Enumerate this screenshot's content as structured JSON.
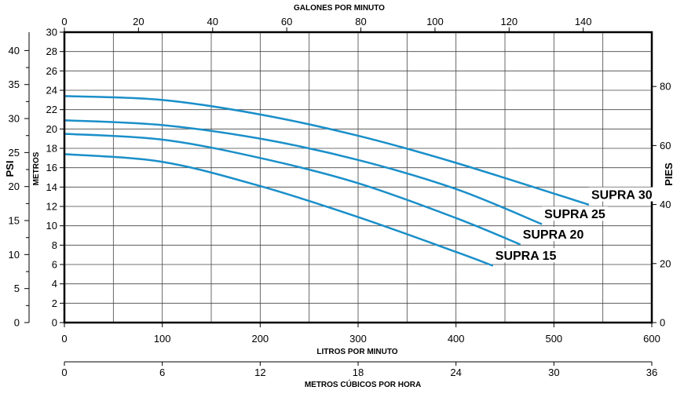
{
  "chart_data": {
    "type": "line",
    "title": "",
    "grid": true,
    "line_color": "#1a8fc9",
    "x_primary": {
      "label": "LITROS POR MINUTO",
      "range": [
        0,
        600
      ],
      "ticks": [
        0,
        100,
        200,
        300,
        400,
        500,
        600
      ]
    },
    "x_top": {
      "label": "GALONES POR MINUTO",
      "range": [
        0,
        158.5
      ],
      "ticks": [
        0,
        20,
        40,
        60,
        80,
        100,
        120,
        140
      ]
    },
    "x_bottom2": {
      "label": "METROS CÚBICOS POR HORA",
      "range": [
        0,
        36
      ],
      "ticks": [
        0,
        6,
        12,
        18,
        24,
        30,
        36
      ]
    },
    "y_primary": {
      "label": "METROS",
      "range": [
        0,
        30
      ],
      "ticks": [
        0,
        2,
        4,
        6,
        8,
        10,
        12,
        14,
        16,
        18,
        20,
        22,
        24,
        26,
        28,
        30
      ]
    },
    "y_left2": {
      "label": "PSI",
      "range": [
        0,
        42.7
      ],
      "ticks": [
        0,
        5,
        10,
        15,
        20,
        25,
        30,
        35,
        40
      ]
    },
    "y_right": {
      "label": "PIES",
      "range": [
        0,
        98.4
      ],
      "ticks": [
        0,
        20,
        40,
        60,
        80
      ]
    },
    "series": [
      {
        "name": "SUPRA 30",
        "points": [
          [
            0,
            23.4
          ],
          [
            100,
            23.0
          ],
          [
            200,
            21.5
          ],
          [
            300,
            19.3
          ],
          [
            400,
            16.5
          ],
          [
            535,
            12.2
          ]
        ]
      },
      {
        "name": "SUPRA 25",
        "points": [
          [
            0,
            20.9
          ],
          [
            100,
            20.4
          ],
          [
            200,
            19.0
          ],
          [
            300,
            16.8
          ],
          [
            400,
            13.8
          ],
          [
            487,
            10.2
          ]
        ]
      },
      {
        "name": "SUPRA 20",
        "points": [
          [
            0,
            19.5
          ],
          [
            100,
            18.9
          ],
          [
            200,
            17.0
          ],
          [
            300,
            14.4
          ],
          [
            400,
            10.8
          ],
          [
            465,
            8.1
          ]
        ]
      },
      {
        "name": "SUPRA 15",
        "points": [
          [
            0,
            17.4
          ],
          [
            100,
            16.6
          ],
          [
            200,
            14.1
          ],
          [
            300,
            10.9
          ],
          [
            400,
            7.3
          ],
          [
            437,
            5.9
          ]
        ]
      }
    ]
  }
}
